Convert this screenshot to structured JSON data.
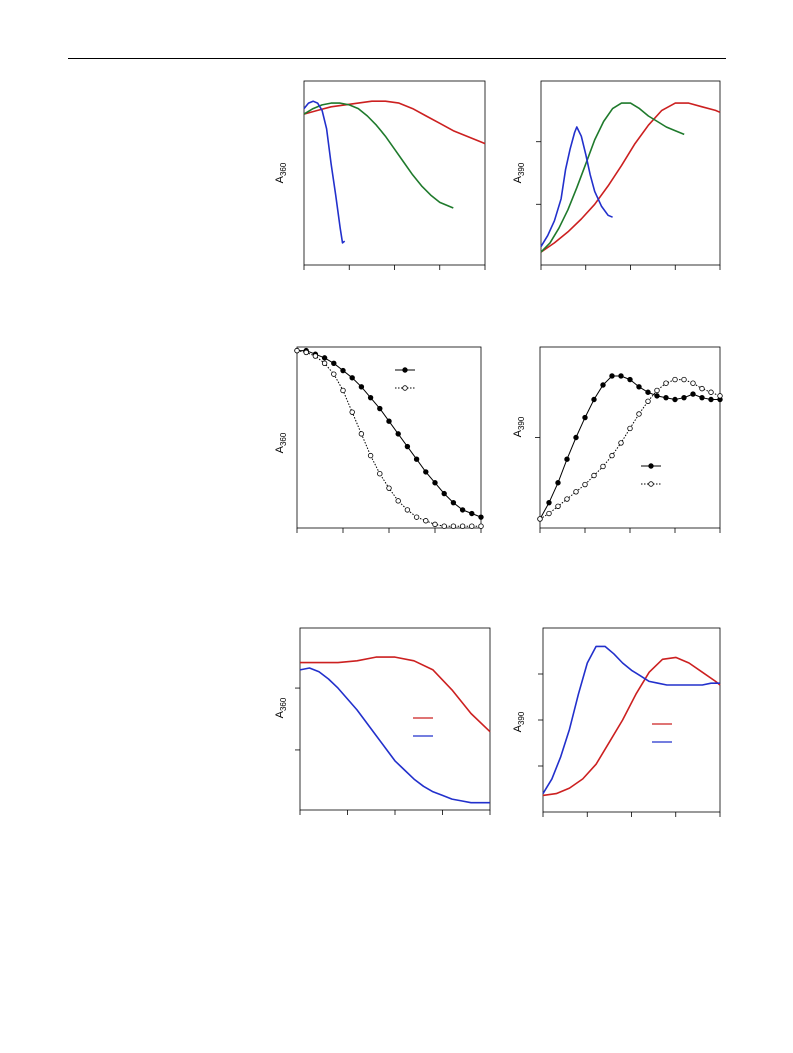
{
  "page": {
    "has_header_rule": true
  },
  "chart_data": [
    {
      "id": "a",
      "type": "line",
      "ylabel": "A",
      "ylabel_sub": "360",
      "xlim": [
        0,
        4
      ],
      "ylim": [
        0,
        1
      ],
      "xticks": [
        0,
        1,
        2,
        3,
        4
      ],
      "yticks": [],
      "series": [
        {
          "color": "#cc2020",
          "x": [
            0,
            0.3,
            0.6,
            0.9,
            1.2,
            1.5,
            1.8,
            2.1,
            2.4,
            2.7,
            3.0,
            3.3,
            3.6,
            3.9,
            4.0
          ],
          "y": [
            0.82,
            0.84,
            0.86,
            0.87,
            0.88,
            0.89,
            0.89,
            0.88,
            0.85,
            0.81,
            0.77,
            0.73,
            0.7,
            0.67,
            0.66
          ]
        },
        {
          "color": "#1f7a2c",
          "x": [
            0,
            0.2,
            0.4,
            0.6,
            0.8,
            1.0,
            1.2,
            1.4,
            1.6,
            1.8,
            2.0,
            2.2,
            2.4,
            2.6,
            2.8,
            3.0,
            3.2,
            3.3
          ],
          "y": [
            0.82,
            0.85,
            0.87,
            0.88,
            0.88,
            0.87,
            0.85,
            0.81,
            0.76,
            0.7,
            0.63,
            0.56,
            0.49,
            0.43,
            0.38,
            0.34,
            0.32,
            0.31
          ]
        },
        {
          "color": "#2230cc",
          "x": [
            0,
            0.1,
            0.2,
            0.3,
            0.4,
            0.5,
            0.6,
            0.7,
            0.8,
            0.85,
            0.9
          ],
          "y": [
            0.85,
            0.88,
            0.89,
            0.88,
            0.84,
            0.74,
            0.55,
            0.38,
            0.2,
            0.12,
            0.13
          ]
        }
      ]
    },
    {
      "id": "b",
      "type": "line",
      "ylabel": "A",
      "ylabel_sub": "390",
      "xlim": [
        0,
        4
      ],
      "ylim": [
        0,
        1
      ],
      "xticks": [
        0,
        1,
        2,
        3,
        4
      ],
      "yticks": [
        0.33,
        0.67
      ],
      "series": [
        {
          "color": "#cc2020",
          "x": [
            0,
            0.3,
            0.6,
            0.9,
            1.2,
            1.5,
            1.8,
            2.1,
            2.4,
            2.7,
            3.0,
            3.3,
            3.6,
            3.9,
            4.0
          ],
          "y": [
            0.07,
            0.12,
            0.18,
            0.25,
            0.33,
            0.43,
            0.54,
            0.66,
            0.76,
            0.84,
            0.88,
            0.88,
            0.86,
            0.84,
            0.83
          ]
        },
        {
          "color": "#1f7a2c",
          "x": [
            0,
            0.2,
            0.4,
            0.6,
            0.8,
            1.0,
            1.2,
            1.4,
            1.6,
            1.8,
            2.0,
            2.2,
            2.4,
            2.6,
            2.8,
            3.0,
            3.2
          ],
          "y": [
            0.07,
            0.12,
            0.2,
            0.3,
            0.42,
            0.55,
            0.68,
            0.78,
            0.85,
            0.88,
            0.88,
            0.85,
            0.81,
            0.78,
            0.75,
            0.73,
            0.71
          ]
        },
        {
          "color": "#2230cc",
          "x": [
            0,
            0.15,
            0.3,
            0.45,
            0.55,
            0.65,
            0.75,
            0.8,
            0.9,
            1.0,
            1.1,
            1.2,
            1.35,
            1.5,
            1.6
          ],
          "y": [
            0.1,
            0.16,
            0.24,
            0.36,
            0.52,
            0.63,
            0.72,
            0.75,
            0.7,
            0.6,
            0.49,
            0.4,
            0.32,
            0.27,
            0.26
          ]
        }
      ]
    },
    {
      "id": "c",
      "type": "scatter",
      "ylabel": "A",
      "ylabel_sub": "360",
      "xlim": [
        0,
        4
      ],
      "ylim": [
        0,
        1
      ],
      "xticks": [
        0,
        1,
        2,
        3,
        4
      ],
      "yticks": [],
      "legend": {
        "position": "top-right",
        "entries": [
          "",
          ""
        ]
      },
      "series": [
        {
          "marker": "filled",
          "line": "solid",
          "x": [
            0,
            0.2,
            0.4,
            0.6,
            0.8,
            1.0,
            1.2,
            1.4,
            1.6,
            1.8,
            2.0,
            2.2,
            2.4,
            2.6,
            2.8,
            3.0,
            3.2,
            3.4,
            3.6,
            3.8,
            4.0
          ],
          "y": [
            0.98,
            0.98,
            0.96,
            0.94,
            0.91,
            0.87,
            0.83,
            0.78,
            0.72,
            0.66,
            0.59,
            0.52,
            0.45,
            0.38,
            0.31,
            0.25,
            0.19,
            0.14,
            0.1,
            0.08,
            0.06
          ]
        },
        {
          "marker": "open",
          "line": "dotted",
          "x": [
            0,
            0.2,
            0.4,
            0.6,
            0.8,
            1.0,
            1.2,
            1.4,
            1.6,
            1.8,
            2.0,
            2.2,
            2.4,
            2.6,
            2.8,
            3.0,
            3.2,
            3.4,
            3.6,
            3.8,
            4.0
          ],
          "y": [
            0.98,
            0.97,
            0.95,
            0.91,
            0.85,
            0.76,
            0.64,
            0.52,
            0.4,
            0.3,
            0.22,
            0.15,
            0.1,
            0.06,
            0.04,
            0.02,
            0.01,
            0.01,
            0.01,
            0.01,
            0.01
          ]
        }
      ]
    },
    {
      "id": "d",
      "type": "scatter",
      "ylabel": "A",
      "ylabel_sub": "390",
      "xlim": [
        0,
        4
      ],
      "ylim": [
        0,
        1
      ],
      "xticks": [
        0,
        1,
        2,
        3,
        4
      ],
      "yticks": [
        0.5
      ],
      "legend": {
        "position": "bottom-right",
        "entries": [
          "",
          ""
        ]
      },
      "series": [
        {
          "marker": "filled",
          "line": "solid",
          "x": [
            0,
            0.2,
            0.4,
            0.6,
            0.8,
            1.0,
            1.2,
            1.4,
            1.6,
            1.8,
            2.0,
            2.2,
            2.4,
            2.6,
            2.8,
            3.0,
            3.2,
            3.4,
            3.6,
            3.8,
            4.0
          ],
          "y": [
            0.05,
            0.14,
            0.25,
            0.38,
            0.5,
            0.61,
            0.71,
            0.79,
            0.84,
            0.84,
            0.82,
            0.78,
            0.75,
            0.73,
            0.72,
            0.71,
            0.72,
            0.74,
            0.72,
            0.71,
            0.71
          ]
        },
        {
          "marker": "open",
          "line": "dotted",
          "x": [
            0,
            0.2,
            0.4,
            0.6,
            0.8,
            1.0,
            1.2,
            1.4,
            1.6,
            1.8,
            2.0,
            2.2,
            2.4,
            2.6,
            2.8,
            3.0,
            3.2,
            3.4,
            3.6,
            3.8,
            4.0
          ],
          "y": [
            0.05,
            0.08,
            0.12,
            0.16,
            0.2,
            0.24,
            0.29,
            0.34,
            0.4,
            0.47,
            0.55,
            0.63,
            0.7,
            0.76,
            0.8,
            0.82,
            0.82,
            0.8,
            0.77,
            0.75,
            0.73
          ]
        }
      ]
    },
    {
      "id": "e",
      "type": "line",
      "ylabel": "A",
      "ylabel_sub": "360",
      "xlim": [
        0,
        4
      ],
      "ylim": [
        0,
        1
      ],
      "xticks": [
        0,
        1,
        2,
        3,
        4
      ],
      "yticks": [
        0.33,
        0.67
      ],
      "legend": {
        "position": "right",
        "entries": [
          "",
          ""
        ]
      },
      "series": [
        {
          "color": "#cc2020",
          "x": [
            0,
            0.4,
            0.8,
            1.2,
            1.6,
            2.0,
            2.4,
            2.8,
            3.2,
            3.6,
            4.0
          ],
          "y": [
            0.81,
            0.81,
            0.81,
            0.82,
            0.84,
            0.84,
            0.82,
            0.77,
            0.66,
            0.53,
            0.43
          ]
        },
        {
          "color": "#2230cc",
          "x": [
            0,
            0.2,
            0.4,
            0.6,
            0.8,
            1.0,
            1.2,
            1.4,
            1.6,
            1.8,
            2.0,
            2.2,
            2.4,
            2.6,
            2.8,
            3.0,
            3.2,
            3.4,
            3.6,
            3.8,
            4.0
          ],
          "y": [
            0.77,
            0.78,
            0.76,
            0.72,
            0.67,
            0.61,
            0.55,
            0.48,
            0.41,
            0.34,
            0.27,
            0.22,
            0.17,
            0.13,
            0.1,
            0.08,
            0.06,
            0.05,
            0.04,
            0.04,
            0.04
          ]
        }
      ]
    },
    {
      "id": "f",
      "type": "line",
      "ylabel": "A",
      "ylabel_sub": "390",
      "xlim": [
        0,
        4
      ],
      "ylim": [
        0,
        1
      ],
      "xticks": [
        0,
        1,
        2,
        3,
        4
      ],
      "yticks": [
        0.25,
        0.5,
        0.75
      ],
      "legend": {
        "position": "right",
        "entries": [
          "",
          ""
        ]
      },
      "series": [
        {
          "color": "#cc2020",
          "x": [
            0,
            0.3,
            0.6,
            0.9,
            1.2,
            1.5,
            1.8,
            2.1,
            2.4,
            2.7,
            3.0,
            3.3,
            3.6,
            3.9,
            4.0
          ],
          "y": [
            0.09,
            0.1,
            0.13,
            0.18,
            0.26,
            0.38,
            0.5,
            0.64,
            0.76,
            0.83,
            0.84,
            0.81,
            0.76,
            0.71,
            0.69
          ]
        },
        {
          "color": "#2230cc",
          "x": [
            0,
            0.2,
            0.4,
            0.6,
            0.8,
            1.0,
            1.2,
            1.4,
            1.6,
            1.8,
            2.0,
            2.2,
            2.4,
            2.6,
            2.8,
            3.0,
            3.2,
            3.4,
            3.6,
            3.8,
            4.0
          ],
          "y": [
            0.1,
            0.18,
            0.3,
            0.45,
            0.64,
            0.81,
            0.9,
            0.9,
            0.86,
            0.81,
            0.77,
            0.74,
            0.71,
            0.7,
            0.69,
            0.69,
            0.69,
            0.69,
            0.69,
            0.7,
            0.7
          ]
        }
      ]
    }
  ]
}
